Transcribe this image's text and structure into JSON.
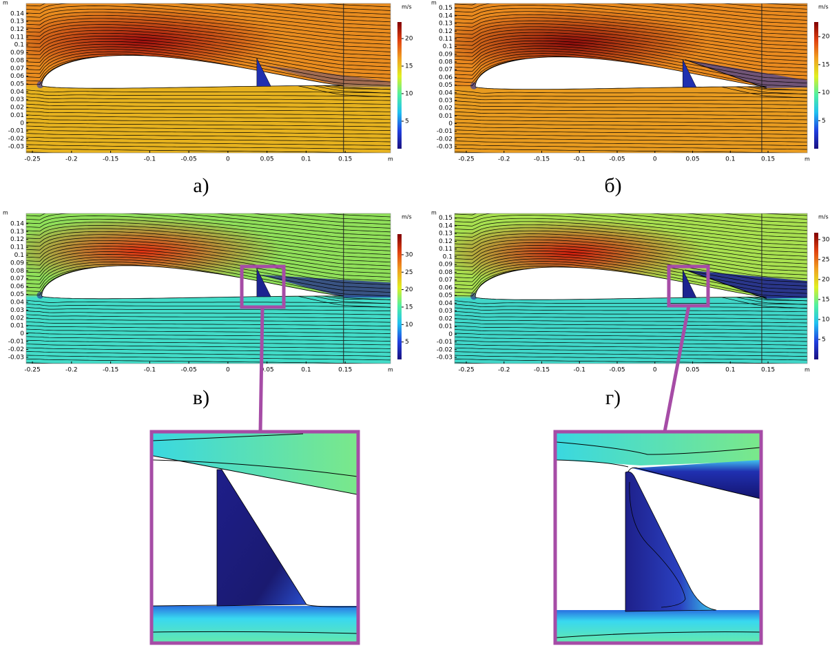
{
  "chart_data": [
    {
      "type": "field",
      "caption": "а)",
      "y_unit": "m",
      "x_unit": "m",
      "xlim": [
        -0.258,
        0.208
      ],
      "ylim": [
        -0.038,
        0.153
      ],
      "xticks": [
        -0.25,
        -0.2,
        -0.15,
        -0.1,
        -0.05,
        0,
        0.05,
        0.1,
        0.15
      ],
      "yticks": [
        -0.03,
        -0.02,
        -0.01,
        0,
        0.01,
        0.02,
        0.03,
        0.04,
        0.05,
        0.06,
        0.07,
        0.08,
        0.09,
        0.1,
        0.11,
        0.12,
        0.13,
        0.14
      ],
      "colorbar": {
        "label": "m/s",
        "lim": [
          0,
          23
        ],
        "ticks": [
          5,
          10,
          15,
          20
        ],
        "colors": [
          "#1a1080",
          "#2040e0",
          "#20c0f0",
          "#50f0a0",
          "#e0f020",
          "#f0a020",
          "#e04010",
          "#800000"
        ]
      },
      "field": {
        "upper": "#e98c1f",
        "lower": "#e6b21f",
        "peak": "#a00e0e",
        "wake": "#2030b0"
      }
    },
    {
      "type": "field",
      "caption": "б)",
      "y_unit": "m",
      "x_unit": "m",
      "xlim": [
        -0.2655,
        0.202
      ],
      "ylim": [
        -0.038,
        0.156
      ],
      "xticks": [
        -0.25,
        -0.2,
        -0.15,
        -0.1,
        -0.05,
        0,
        0.05,
        0.1,
        0.15
      ],
      "yticks": [
        -0.03,
        -0.02,
        -0.01,
        0,
        0.01,
        0.02,
        0.03,
        0.04,
        0.05,
        0.06,
        0.07,
        0.08,
        0.09,
        0.1,
        0.11,
        0.12,
        0.13,
        0.14,
        0.15
      ],
      "colorbar": {
        "label": "m/s",
        "lim": [
          0,
          22.6
        ],
        "ticks": [
          5,
          10,
          15,
          20
        ],
        "colors": [
          "#1a1080",
          "#2040e0",
          "#20c0f0",
          "#50f0a0",
          "#e0f020",
          "#f0a020",
          "#e04010",
          "#800000"
        ]
      },
      "field": {
        "upper": "#e98a1f",
        "lower": "#e89b20",
        "peak": "#8c0b0b",
        "wake": "#2030b0"
      }
    },
    {
      "type": "field",
      "caption": "в)",
      "y_unit": "m",
      "x_unit": "m",
      "xlim": [
        -0.258,
        0.208
      ],
      "ylim": [
        -0.038,
        0.153
      ],
      "xticks": [
        -0.25,
        -0.2,
        -0.15,
        -0.1,
        -0.05,
        0,
        0.05,
        0.1,
        0.15
      ],
      "yticks": [
        -0.03,
        -0.02,
        -0.01,
        0,
        0.01,
        0.02,
        0.03,
        0.04,
        0.05,
        0.06,
        0.07,
        0.08,
        0.09,
        0.1,
        0.11,
        0.12,
        0.13,
        0.14
      ],
      "colorbar": {
        "label": "m/s",
        "lim": [
          0,
          35.9
        ],
        "ticks": [
          5,
          10,
          15,
          20,
          25,
          30
        ],
        "colors": [
          "#1a1080",
          "#2040e0",
          "#20c0f0",
          "#50f0a0",
          "#e0f020",
          "#f0a020",
          "#e04010",
          "#800000"
        ]
      },
      "field": {
        "upper": "#90e05a",
        "lower": "#42dcc8",
        "peak": "#e03010",
        "wake": "#1c2490"
      }
    },
    {
      "type": "field",
      "caption": "г)",
      "y_unit": "m",
      "x_unit": "m",
      "xlim": [
        -0.2655,
        0.202
      ],
      "ylim": [
        -0.038,
        0.156
      ],
      "xticks": [
        -0.25,
        -0.2,
        -0.15,
        -0.1,
        -0.05,
        0,
        0.05,
        0.1,
        0.15
      ],
      "yticks": [
        -0.03,
        -0.02,
        -0.01,
        0,
        0.01,
        0.02,
        0.03,
        0.04,
        0.05,
        0.06,
        0.07,
        0.08,
        0.09,
        0.1,
        0.11,
        0.12,
        0.13,
        0.14,
        0.15
      ],
      "colorbar": {
        "label": "m/s",
        "lim": [
          0,
          31.7
        ],
        "ticks": [
          5,
          10,
          15,
          20,
          25,
          30
        ],
        "colors": [
          "#1a1080",
          "#2040e0",
          "#20c0f0",
          "#50f0a0",
          "#e0f020",
          "#f0a020",
          "#e04010",
          "#800000"
        ]
      },
      "field": {
        "upper": "#a8e050",
        "lower": "#40d6c8",
        "peak": "#d01c0c",
        "wake": "#1c2490"
      }
    }
  ]
}
